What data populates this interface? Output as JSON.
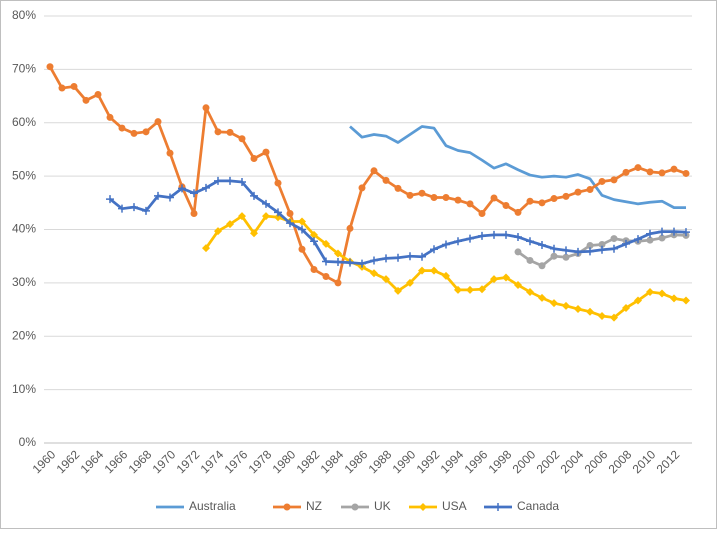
{
  "chart_data": {
    "type": "line",
    "x": [
      1960,
      1961,
      1962,
      1963,
      1964,
      1965,
      1966,
      1967,
      1968,
      1969,
      1970,
      1971,
      1972,
      1973,
      1974,
      1975,
      1976,
      1977,
      1978,
      1979,
      1980,
      1981,
      1982,
      1983,
      1984,
      1985,
      1986,
      1987,
      1988,
      1989,
      1990,
      1991,
      1992,
      1993,
      1994,
      1995,
      1996,
      1997,
      1998,
      1999,
      2000,
      2001,
      2002,
      2003,
      2004,
      2005,
      2006,
      2007,
      2008,
      2009,
      2010,
      2011,
      2012,
      2013
    ],
    "xlim": [
      1959.5,
      2013.5
    ],
    "xticks": [
      1960,
      1962,
      1964,
      1966,
      1968,
      1970,
      1972,
      1974,
      1976,
      1978,
      1980,
      1982,
      1984,
      1986,
      1988,
      1990,
      1992,
      1994,
      1996,
      1998,
      2000,
      2002,
      2004,
      2006,
      2008,
      2010,
      2012
    ],
    "ylim": [
      0,
      80
    ],
    "yticks": [
      {
        "value": 0,
        "label": "0%"
      },
      {
        "value": 10,
        "label": "10%"
      },
      {
        "value": 20,
        "label": "20%"
      },
      {
        "value": 30,
        "label": "30%"
      },
      {
        "value": 40,
        "label": "40%"
      },
      {
        "value": 50,
        "label": "50%"
      },
      {
        "value": 60,
        "label": "60%"
      },
      {
        "value": 70,
        "label": "70%"
      },
      {
        "value": 80,
        "label": "80%"
      }
    ],
    "grid": true,
    "legend": "bottom",
    "series": [
      {
        "name": "Australia",
        "color": "#5b9bd5",
        "marker": "none",
        "values": [
          null,
          null,
          null,
          null,
          null,
          null,
          null,
          null,
          null,
          null,
          null,
          null,
          null,
          null,
          null,
          null,
          null,
          null,
          null,
          null,
          null,
          null,
          null,
          null,
          null,
          59.3,
          57.3,
          57.8,
          57.5,
          56.3,
          57.8,
          59.3,
          59,
          55.7,
          54.8,
          54.4,
          53,
          51.5,
          52.3,
          51.2,
          50.2,
          49.8,
          50,
          49.8,
          50.3,
          49.5,
          46.4,
          45.6,
          45.2,
          44.8,
          45.1,
          45.3,
          44.1,
          44.1
        ]
      },
      {
        "name": "NZ",
        "color": "#ed7d31",
        "marker": "circle",
        "values": [
          70.5,
          66.5,
          66.8,
          64.2,
          65.3,
          61,
          59,
          58,
          58.3,
          60.2,
          54.3,
          48,
          43,
          62.8,
          58.3,
          58.2,
          57,
          53.3,
          54.5,
          48.7,
          43,
          36.3,
          32.5,
          31.2,
          30,
          40.2,
          47.8,
          51,
          49.2,
          47.7,
          46.4,
          46.8,
          46,
          46,
          45.5,
          44.8,
          43,
          45.9,
          44.5,
          43.2,
          45.3,
          45,
          45.8,
          46.2,
          47,
          47.5,
          49,
          49.3,
          50.7,
          51.6,
          50.8,
          50.6,
          51.3,
          50.5
        ]
      },
      {
        "name": "UK",
        "color": "#a5a5a5",
        "marker": "circle",
        "values": [
          null,
          null,
          null,
          null,
          null,
          null,
          null,
          null,
          null,
          null,
          null,
          null,
          null,
          null,
          null,
          null,
          null,
          null,
          null,
          null,
          null,
          null,
          null,
          null,
          null,
          null,
          null,
          null,
          null,
          null,
          null,
          null,
          null,
          null,
          null,
          null,
          null,
          null,
          null,
          35.8,
          34.2,
          33.2,
          35,
          34.8,
          35.5,
          37,
          37.2,
          38.3,
          37.9,
          37.8,
          38,
          38.4,
          39,
          38.9
        ]
      },
      {
        "name": "USA",
        "color": "#ffc000",
        "marker": "diamond",
        "values": [
          null,
          null,
          null,
          null,
          null,
          null,
          null,
          null,
          null,
          null,
          null,
          null,
          null,
          36.5,
          39.7,
          41,
          42.5,
          39.3,
          42.5,
          42.3,
          41.5,
          41.5,
          39,
          37.3,
          35.5,
          34,
          33,
          31.8,
          30.7,
          28.5,
          30,
          32.3,
          32.3,
          31.3,
          28.7,
          28.7,
          28.8,
          30.7,
          31,
          29.6,
          28.3,
          27.2,
          26.2,
          25.7,
          25.1,
          24.6,
          23.8,
          23.5,
          25.3,
          26.7,
          28.3,
          28,
          27.1,
          26.7
        ]
      },
      {
        "name": "Canada",
        "color": "#4472c4",
        "marker": "plus",
        "values": [
          null,
          null,
          null,
          null,
          null,
          45.7,
          43.9,
          44.2,
          43.5,
          46.3,
          46,
          47.7,
          46.8,
          47.8,
          49.1,
          49.1,
          48.9,
          46.3,
          44.8,
          43.2,
          41.2,
          40,
          37.8,
          34,
          33.9,
          33.8,
          33.6,
          34.2,
          34.6,
          34.7,
          35,
          34.9,
          36.3,
          37.2,
          37.8,
          38.3,
          38.8,
          39,
          39,
          38.6,
          37.8,
          37.1,
          36.4,
          36.1,
          35.8,
          35.9,
          36.2,
          36.4,
          37.3,
          38.2,
          39.2,
          39.6,
          39.6,
          39.5
        ]
      }
    ]
  }
}
